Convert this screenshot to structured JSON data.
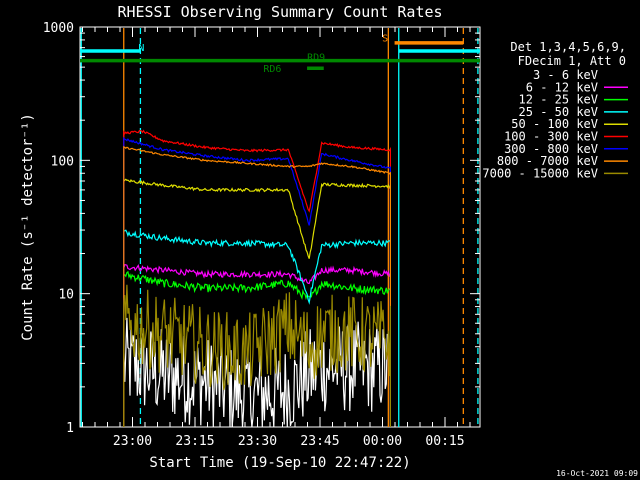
{
  "chart_data": {
    "type": "line",
    "title": "RHESSI Observing Summary Count Rates",
    "xlabel": "Start Time (19-Sep-10 22:47:22)",
    "ylabel": "Count Rate (s⁻¹ detector⁻¹)",
    "ylog": true,
    "ylim": [
      1,
      1000
    ],
    "xlim_minutes": [
      0,
      96
    ],
    "grid": false,
    "legend_position": "right",
    "x_ticks": [
      {
        "label": "23:00",
        "minute": 12.6
      },
      {
        "label": "23:15",
        "minute": 27.6
      },
      {
        "label": "23:30",
        "minute": 42.6
      },
      {
        "label": "23:45",
        "minute": 57.6
      },
      {
        "label": "00:00",
        "minute": 72.6
      },
      {
        "label": "00:15",
        "minute": 87.6
      }
    ],
    "y_ticks": [
      {
        "label": "1",
        "value": 1
      },
      {
        "label": "10",
        "value": 10
      },
      {
        "label": "100",
        "value": 100
      },
      {
        "label": "1000",
        "value": 1000
      }
    ],
    "legend_header": [
      "Det 1,3,4,5,6,9,",
      "FDecim 1, Att 0"
    ],
    "data_window": {
      "start": 10.5,
      "gap_start": 54.5,
      "gap_end": 58.0,
      "end": 74.5
    },
    "series": [
      {
        "name": "3 - 6 keV",
        "color": "#ffffff",
        "legend_color": "#000000",
        "noise": 0.35,
        "values": [
          [
            10.5,
            3.0
          ],
          [
            20,
            2.5
          ],
          [
            30,
            2.2
          ],
          [
            40,
            1.7
          ],
          [
            50,
            1.9
          ],
          [
            55,
            2.5
          ],
          [
            58,
            2.8
          ],
          [
            65,
            2.8
          ],
          [
            74.5,
            2.8
          ]
        ]
      },
      {
        "name": "6 - 12 keV",
        "color": "#ff00ff",
        "noise": 0.05,
        "values": [
          [
            10.5,
            16
          ],
          [
            20,
            15
          ],
          [
            30,
            14
          ],
          [
            40,
            14
          ],
          [
            50,
            14
          ],
          [
            55,
            12
          ],
          [
            58,
            15
          ],
          [
            65,
            15
          ],
          [
            74.5,
            14
          ]
        ]
      },
      {
        "name": "12 - 25 keV",
        "color": "#00ff00",
        "noise": 0.07,
        "values": [
          [
            10.5,
            14
          ],
          [
            20,
            12
          ],
          [
            30,
            11
          ],
          [
            40,
            11
          ],
          [
            50,
            12
          ],
          [
            55,
            9
          ],
          [
            58,
            12
          ],
          [
            65,
            11
          ],
          [
            74.5,
            10.5
          ]
        ]
      },
      {
        "name": "25 - 50 keV",
        "color": "#00ffff",
        "noise": 0.05,
        "values": [
          [
            10.5,
            29
          ],
          [
            20,
            26
          ],
          [
            30,
            24
          ],
          [
            40,
            24
          ],
          [
            50,
            23
          ],
          [
            55,
            9
          ],
          [
            58,
            23
          ],
          [
            65,
            24
          ],
          [
            74.5,
            24
          ]
        ]
      },
      {
        "name": "50 - 100 keV",
        "color": "#dddd00",
        "noise": 0.025,
        "values": [
          [
            10.5,
            71
          ],
          [
            20,
            65
          ],
          [
            30,
            60
          ],
          [
            40,
            60
          ],
          [
            50,
            60
          ],
          [
            55,
            18
          ],
          [
            58,
            66
          ],
          [
            65,
            65
          ],
          [
            74.5,
            64
          ]
        ]
      },
      {
        "name": "100 - 300 keV",
        "color": "#ff0000",
        "noise": 0.02,
        "values": [
          [
            10.5,
            160
          ],
          [
            15,
            165
          ],
          [
            20,
            140
          ],
          [
            30,
            125
          ],
          [
            40,
            118
          ],
          [
            50,
            120
          ],
          [
            55,
            41
          ],
          [
            58,
            135
          ],
          [
            65,
            125
          ],
          [
            74.5,
            120
          ]
        ]
      },
      {
        "name": "300 - 800 keV",
        "color": "#0000ff",
        "noise": 0.02,
        "values": [
          [
            10.5,
            145
          ],
          [
            20,
            120
          ],
          [
            30,
            108
          ],
          [
            40,
            100
          ],
          [
            50,
            103
          ],
          [
            55,
            33
          ],
          [
            58,
            112
          ],
          [
            65,
            100
          ],
          [
            74.5,
            87
          ]
        ]
      },
      {
        "name": "800 - 7000 keV",
        "color": "#ff8800",
        "noise": 0.015,
        "values": [
          [
            10.5,
            125
          ],
          [
            20,
            110
          ],
          [
            30,
            100
          ],
          [
            40,
            95
          ],
          [
            50,
            90
          ],
          [
            55,
            90
          ],
          [
            58,
            95
          ],
          [
            65,
            90
          ],
          [
            74.5,
            80
          ]
        ]
      },
      {
        "name": "7000 - 15000 keV",
        "color": "#9a8a00",
        "noise": 0.3,
        "values": [
          [
            10.5,
            6.0
          ],
          [
            20,
            5.0
          ],
          [
            30,
            4.0
          ],
          [
            40,
            3.5
          ],
          [
            50,
            5.5
          ],
          [
            55,
            4.0
          ],
          [
            58,
            5.0
          ],
          [
            65,
            5.0
          ],
          [
            74.5,
            4.5
          ]
        ]
      }
    ],
    "annotations": [
      {
        "label": "N",
        "color": "#00ffff",
        "x": 14.0,
        "y": 660
      },
      {
        "label": "S",
        "color": "#ff8800",
        "x": 72.5,
        "y": 780
      },
      {
        "label": "RD9",
        "color": "#008800",
        "x": 54.5,
        "y": 560
      },
      {
        "label": "RD6",
        "color": "#008800",
        "x": 44.0,
        "y": 460
      }
    ],
    "state_bars": [
      {
        "label": "N",
        "color": "#00ffff",
        "y": 660,
        "segments": [
          [
            0,
            14.5
          ],
          [
            76.5,
            96
          ]
        ]
      },
      {
        "label": "S",
        "color": "#ff8800",
        "y": 760,
        "segments": [
          [
            75.5,
            92
          ]
        ]
      },
      {
        "label": "RD9",
        "color": "#008800",
        "y": 560,
        "segments": [
          [
            0,
            96
          ]
        ]
      },
      {
        "label": "RD6",
        "color": "#008800",
        "y": 490,
        "segments": [
          [
            54.5,
            58.5
          ]
        ]
      }
    ],
    "vertical_markers": [
      {
        "x": 0.3,
        "color": "#00ffff",
        "style": "solid"
      },
      {
        "x": 14.5,
        "color": "#00ffff",
        "style": "dashed"
      },
      {
        "x": 10.5,
        "color": "#ff8800",
        "style": "solid"
      },
      {
        "x": 74.0,
        "color": "#ff8800",
        "style": "solid"
      },
      {
        "x": 76.5,
        "color": "#00ffff",
        "style": "solid"
      },
      {
        "x": 92.0,
        "color": "#ff8800",
        "style": "dashed"
      },
      {
        "x": 95.5,
        "color": "#00ffff",
        "style": "dashed"
      }
    ]
  },
  "footer": {
    "timestamp": "16-Oct-2021 09:09"
  }
}
